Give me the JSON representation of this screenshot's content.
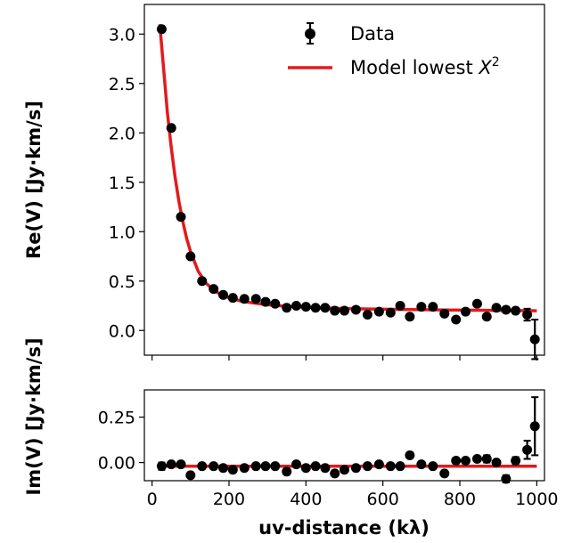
{
  "chart_data": [
    {
      "type": "scatter",
      "panel": "real",
      "ylabel": "Re(V) [Jy·km/s]",
      "xlim": [
        -20,
        1020
      ],
      "ylim": [
        -0.25,
        3.3
      ],
      "yticks": [
        0.0,
        0.5,
        1.0,
        1.5,
        2.0,
        2.5,
        3.0
      ],
      "ytick_labels": [
        "0.0",
        "0.5",
        "1.0",
        "1.5",
        "2.0",
        "2.5",
        "3.0"
      ],
      "legend": {
        "placement": "top-right",
        "data_label": "Data",
        "model_label": "Model lowest"
      },
      "series": [
        {
          "name": "Data",
          "x": [
            25,
            50,
            75,
            100,
            130,
            160,
            185,
            210,
            240,
            270,
            295,
            320,
            350,
            375,
            400,
            425,
            450,
            475,
            500,
            530,
            560,
            590,
            620,
            645,
            670,
            700,
            730,
            760,
            790,
            815,
            845,
            870,
            895,
            920,
            945,
            975,
            995
          ],
          "y": [
            3.05,
            2.05,
            1.15,
            0.75,
            0.5,
            0.42,
            0.36,
            0.33,
            0.32,
            0.32,
            0.29,
            0.27,
            0.23,
            0.25,
            0.24,
            0.23,
            0.23,
            0.2,
            0.2,
            0.21,
            0.16,
            0.19,
            0.18,
            0.25,
            0.14,
            0.24,
            0.24,
            0.17,
            0.11,
            0.19,
            0.27,
            0.14,
            0.23,
            0.21,
            0.2,
            0.16,
            -0.09
          ],
          "yerr": [
            0.02,
            0.02,
            0.02,
            0.02,
            0.02,
            0.02,
            0.02,
            0.02,
            0.02,
            0.02,
            0.02,
            0.02,
            0.02,
            0.02,
            0.02,
            0.02,
            0.02,
            0.02,
            0.02,
            0.02,
            0.02,
            0.02,
            0.02,
            0.02,
            0.02,
            0.02,
            0.02,
            0.02,
            0.02,
            0.02,
            0.02,
            0.02,
            0.02,
            0.02,
            0.02,
            0.06,
            0.2
          ],
          "color": "#000000"
        },
        {
          "name": "Model lowest X²",
          "x": [
            20,
            30,
            40,
            50,
            60,
            70,
            80,
            90,
            100,
            120,
            140,
            160,
            180,
            200,
            230,
            260,
            300,
            350,
            400,
            450,
            500,
            600,
            700,
            800,
            900,
            1000
          ],
          "y": [
            3.1,
            2.65,
            2.2,
            1.85,
            1.55,
            1.3,
            1.1,
            0.93,
            0.8,
            0.6,
            0.48,
            0.41,
            0.36,
            0.33,
            0.3,
            0.28,
            0.26,
            0.245,
            0.235,
            0.228,
            0.222,
            0.215,
            0.21,
            0.206,
            0.203,
            0.2
          ],
          "color": "#e31a1c"
        }
      ]
    },
    {
      "type": "scatter",
      "panel": "imaginary",
      "ylabel": "Im(V) [Jy·km/s]",
      "xlabel": "uv-distance (kλ)",
      "xlim": [
        -20,
        1020
      ],
      "xticks": [
        0,
        200,
        400,
        600,
        800,
        1000
      ],
      "xtick_labels": [
        "0",
        "200",
        "400",
        "600",
        "800",
        "1000"
      ],
      "ylim": [
        -0.1,
        0.4
      ],
      "yticks": [
        0.0,
        0.25
      ],
      "ytick_labels": [
        "0.00",
        "0.25"
      ],
      "series": [
        {
          "name": "Data",
          "x": [
            25,
            50,
            75,
            100,
            130,
            160,
            185,
            210,
            240,
            270,
            295,
            320,
            350,
            375,
            400,
            425,
            450,
            475,
            500,
            530,
            560,
            590,
            620,
            645,
            670,
            700,
            730,
            760,
            790,
            815,
            845,
            870,
            895,
            920,
            945,
            975,
            995
          ],
          "y": [
            -0.02,
            -0.01,
            -0.01,
            -0.07,
            -0.02,
            -0.02,
            -0.03,
            -0.04,
            -0.03,
            -0.02,
            -0.02,
            -0.02,
            -0.05,
            -0.01,
            -0.03,
            -0.02,
            -0.03,
            -0.06,
            -0.04,
            -0.03,
            -0.02,
            -0.01,
            -0.02,
            -0.02,
            0.04,
            -0.01,
            -0.02,
            -0.06,
            0.01,
            0.01,
            0.02,
            0.02,
            0.0,
            -0.09,
            0.01,
            0.07,
            0.2
          ],
          "yerr": [
            0.02,
            0.01,
            0.01,
            0.01,
            0.01,
            0.01,
            0.01,
            0.01,
            0.01,
            0.01,
            0.01,
            0.01,
            0.01,
            0.01,
            0.01,
            0.01,
            0.01,
            0.01,
            0.01,
            0.01,
            0.01,
            0.01,
            0.01,
            0.01,
            0.01,
            0.01,
            0.01,
            0.01,
            0.01,
            0.01,
            0.01,
            0.02,
            0.01,
            0.02,
            0.02,
            0.05,
            0.16
          ],
          "color": "#000000"
        },
        {
          "name": "Model lowest X²",
          "x": [
            20,
            1000
          ],
          "y": [
            -0.02,
            -0.02
          ],
          "color": "#e31a1c"
        }
      ]
    }
  ]
}
